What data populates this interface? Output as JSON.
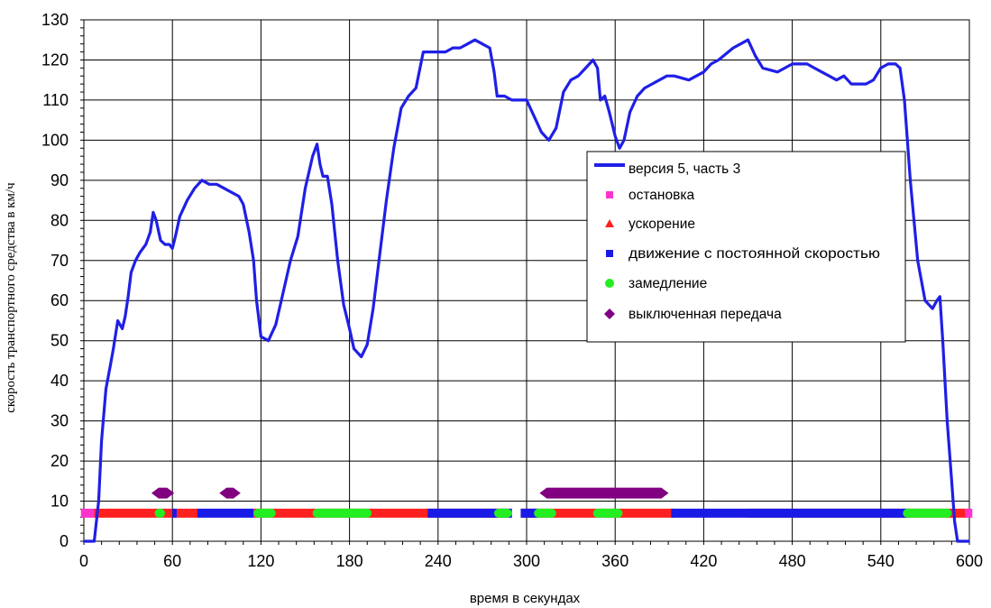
{
  "chart_data": {
    "type": "line",
    "xlabel": "время в секундах",
    "ylabel": "скорость транспортного средства в км/ч",
    "xlim": [
      0,
      600
    ],
    "ylim": [
      0,
      130
    ],
    "x_ticks": [
      "0",
      "60",
      "120",
      "180",
      "240",
      "300",
      "360",
      "420",
      "480",
      "540",
      "600"
    ],
    "y_ticks": [
      "0",
      "10",
      "20",
      "30",
      "40",
      "50",
      "60",
      "70",
      "80",
      "90",
      "100",
      "110",
      "120",
      "130"
    ],
    "grid": true,
    "legend_position": "right",
    "colors": {
      "speed": "#1f1fe6",
      "stop": "#ff33cc",
      "accel": "#ff2020",
      "cruise": "#1a1ae6",
      "decel": "#22ee22",
      "neutral": "#800080"
    },
    "series": [
      {
        "name": "версия 5, часть 3",
        "points": [
          [
            0,
            0
          ],
          [
            3,
            0
          ],
          [
            7,
            0
          ],
          [
            10,
            10
          ],
          [
            12,
            25
          ],
          [
            15,
            38
          ],
          [
            18,
            44
          ],
          [
            20,
            48
          ],
          [
            23,
            55
          ],
          [
            26,
            53
          ],
          [
            28,
            56
          ],
          [
            30,
            61
          ],
          [
            32,
            67
          ],
          [
            35,
            70
          ],
          [
            38,
            72
          ],
          [
            42,
            74
          ],
          [
            45,
            77
          ],
          [
            47,
            82
          ],
          [
            49,
            80
          ],
          [
            52,
            75
          ],
          [
            55,
            74
          ],
          [
            58,
            74
          ],
          [
            60,
            73
          ],
          [
            62,
            76
          ],
          [
            65,
            81
          ],
          [
            70,
            85
          ],
          [
            75,
            88
          ],
          [
            80,
            90
          ],
          [
            85,
            89
          ],
          [
            90,
            89
          ],
          [
            95,
            88
          ],
          [
            100,
            87
          ],
          [
            105,
            86
          ],
          [
            108,
            84
          ],
          [
            112,
            77
          ],
          [
            115,
            70
          ],
          [
            117,
            60
          ],
          [
            120,
            51
          ],
          [
            125,
            50
          ],
          [
            130,
            54
          ],
          [
            135,
            62
          ],
          [
            140,
            70
          ],
          [
            145,
            76
          ],
          [
            150,
            88
          ],
          [
            155,
            96
          ],
          [
            158,
            99
          ],
          [
            160,
            94
          ],
          [
            162,
            91
          ],
          [
            165,
            91
          ],
          [
            168,
            84
          ],
          [
            172,
            70
          ],
          [
            176,
            59
          ],
          [
            180,
            53
          ],
          [
            183,
            48
          ],
          [
            188,
            46
          ],
          [
            192,
            49
          ],
          [
            196,
            58
          ],
          [
            200,
            70
          ],
          [
            205,
            85
          ],
          [
            210,
            98
          ],
          [
            215,
            108
          ],
          [
            220,
            111
          ],
          [
            225,
            113
          ],
          [
            230,
            122
          ],
          [
            235,
            122
          ],
          [
            240,
            122
          ],
          [
            245,
            122
          ],
          [
            250,
            123
          ],
          [
            255,
            123
          ],
          [
            260,
            124
          ],
          [
            265,
            125
          ],
          [
            270,
            124
          ],
          [
            275,
            123
          ],
          [
            278,
            117
          ],
          [
            280,
            111
          ],
          [
            285,
            111
          ],
          [
            290,
            110
          ],
          [
            295,
            110
          ],
          [
            300,
            110
          ],
          [
            305,
            106
          ],
          [
            310,
            102
          ],
          [
            315,
            100
          ],
          [
            320,
            103
          ],
          [
            325,
            112
          ],
          [
            330,
            115
          ],
          [
            335,
            116
          ],
          [
            340,
            118
          ],
          [
            345,
            120
          ],
          [
            348,
            118
          ],
          [
            350,
            110
          ],
          [
            353,
            111
          ],
          [
            356,
            107
          ],
          [
            360,
            101
          ],
          [
            363,
            98
          ],
          [
            366,
            100
          ],
          [
            370,
            107
          ],
          [
            375,
            111
          ],
          [
            380,
            113
          ],
          [
            385,
            114
          ],
          [
            390,
            115
          ],
          [
            395,
            116
          ],
          [
            400,
            116
          ],
          [
            410,
            115
          ],
          [
            415,
            116
          ],
          [
            420,
            117
          ],
          [
            425,
            119
          ],
          [
            430,
            120
          ],
          [
            440,
            123
          ],
          [
            445,
            124
          ],
          [
            450,
            125
          ],
          [
            455,
            121
          ],
          [
            460,
            118
          ],
          [
            470,
            117
          ],
          [
            475,
            118
          ],
          [
            480,
            119
          ],
          [
            490,
            119
          ],
          [
            495,
            118
          ],
          [
            500,
            117
          ],
          [
            505,
            116
          ],
          [
            510,
            115
          ],
          [
            515,
            116
          ],
          [
            520,
            114
          ],
          [
            525,
            114
          ],
          [
            530,
            114
          ],
          [
            535,
            115
          ],
          [
            540,
            118
          ],
          [
            545,
            119
          ],
          [
            550,
            119
          ],
          [
            553,
            118
          ],
          [
            556,
            110
          ],
          [
            560,
            90
          ],
          [
            565,
            70
          ],
          [
            570,
            60
          ],
          [
            575,
            58
          ],
          [
            578,
            60
          ],
          [
            580,
            61
          ],
          [
            582,
            50
          ],
          [
            585,
            30
          ],
          [
            588,
            15
          ],
          [
            590,
            5
          ],
          [
            592,
            0
          ],
          [
            600,
            0
          ]
        ]
      },
      {
        "name": "остановка",
        "segments": [
          [
            -3,
            7
          ],
          [
            597,
            602
          ]
        ]
      },
      {
        "name": "ускорение",
        "segments": [
          [
            7,
            60
          ],
          [
            63,
            77
          ],
          [
            115,
            290
          ],
          [
            296,
            400
          ],
          [
            450,
            600
          ]
        ]
      },
      {
        "name": "движение с постоянной скоростью",
        "segments": [
          [
            60,
            63
          ],
          [
            77,
            115
          ],
          [
            233,
            290
          ],
          [
            296,
            308
          ],
          [
            398,
            560
          ]
        ]
      },
      {
        "name": "замедление",
        "segments": [
          [
            48,
            55
          ],
          [
            115,
            130
          ],
          [
            155,
            195
          ],
          [
            278,
            290
          ],
          [
            305,
            320
          ],
          [
            345,
            365
          ],
          [
            555,
            588
          ]
        ]
      },
      {
        "name": "выключенная передача",
        "segments": [
          [
            47,
            60
          ],
          [
            93,
            105
          ],
          [
            310,
            395
          ]
        ]
      }
    ]
  }
}
